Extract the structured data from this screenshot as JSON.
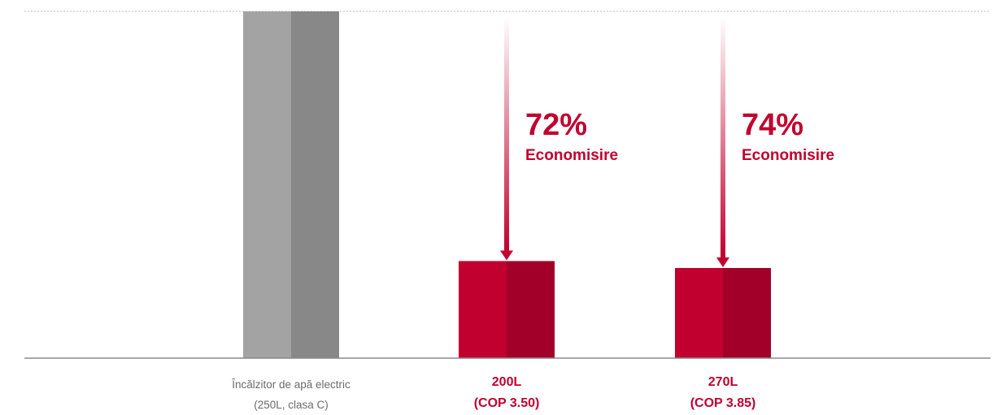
{
  "chart_data": {
    "type": "bar",
    "categories": [
      [
        "Încălzitor de apă electric",
        "(250L, clasa C)"
      ],
      [
        "200L",
        "(COP 3.50)"
      ],
      [
        "270L",
        "(COP 3.85)"
      ]
    ],
    "values": [
      100,
      28,
      26
    ],
    "annotations": [
      {
        "category_index": 1,
        "percent": "72%",
        "label": "Economisire"
      },
      {
        "category_index": 2,
        "percent": "74%",
        "label": "Economisire"
      }
    ],
    "ylim": [
      0,
      100
    ],
    "grid": false,
    "title": "",
    "xlabel": "",
    "ylabel": ""
  },
  "colors": {
    "reference_bar_light": "#a3a3a3",
    "reference_bar_dark": "#888888",
    "accent_bar_light": "#c1002f",
    "accent_bar_dark": "#a20029",
    "accent_text": "#c1002f",
    "reference_text": "#6b6b6b",
    "baseline": "#8a8a8a",
    "top_rule": "#bdbdbd"
  }
}
